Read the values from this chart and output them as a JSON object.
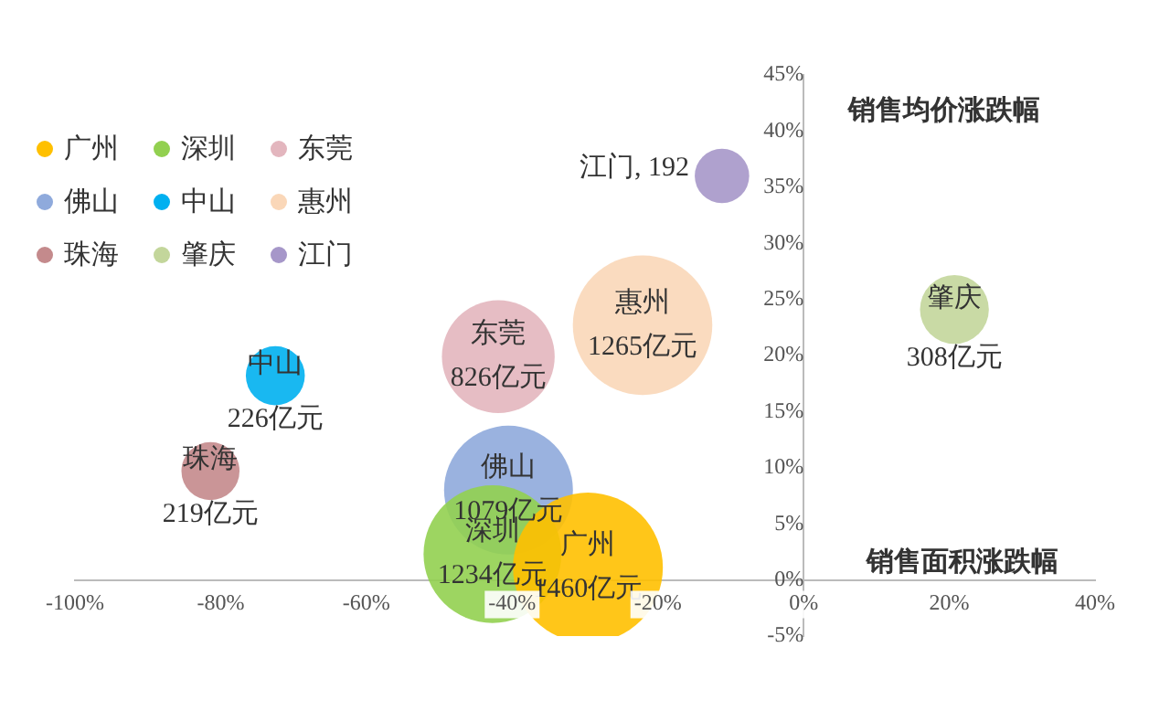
{
  "chart_data": {
    "type": "bubble",
    "xlabel": "销售面积涨跌幅",
    "ylabel": "销售均价涨跌幅",
    "xlim": [
      -100,
      40
    ],
    "xticks": [
      {
        "value": -100,
        "label": "-100%"
      },
      {
        "value": -80,
        "label": "-80%"
      },
      {
        "value": -60,
        "label": "-60%"
      },
      {
        "value": -40,
        "label": "-40%"
      },
      {
        "value": -20,
        "label": "-20%"
      },
      {
        "value": 0,
        "label": "0%"
      },
      {
        "value": 20,
        "label": "20%"
      },
      {
        "value": 40,
        "label": "40%"
      }
    ],
    "ylim": [
      -5,
      45
    ],
    "yticks": [
      {
        "value": -5,
        "label": "-5%"
      },
      {
        "value": 0,
        "label": "0%"
      },
      {
        "value": 5,
        "label": "5%"
      },
      {
        "value": 10,
        "label": "10%"
      },
      {
        "value": 15,
        "label": "15%"
      },
      {
        "value": 20,
        "label": "20%"
      },
      {
        "value": 25,
        "label": "25%"
      },
      {
        "value": 30,
        "label": "30%"
      },
      {
        "value": 35,
        "label": "35%"
      },
      {
        "value": 40,
        "label": "40%"
      },
      {
        "value": 45,
        "label": "45%"
      }
    ],
    "grid": false,
    "legend": "top left",
    "series": [
      {
        "name": "广州",
        "color": "#ffc000",
        "x": [
          -29.6
        ],
        "values": [
          1.1
        ],
        "sizes": [
          1
        ]
      },
      {
        "name": "深圳",
        "color": "#92d050",
        "x": [
          -42.7
        ],
        "values": [
          2.3
        ],
        "sizes": [
          0.845
        ]
      },
      {
        "name": "东莞",
        "color": "#e3b6be",
        "x": [
          -41.9
        ],
        "values": [
          19.9
        ],
        "sizes": [
          0.566
        ]
      },
      {
        "name": "佛山",
        "color": "#8faadc",
        "x": [
          -40.5
        ],
        "values": [
          8.0
        ],
        "sizes": [
          0.739
        ]
      },
      {
        "name": "中山",
        "color": "#00b0f0",
        "x": [
          -72.5
        ],
        "values": [
          18.2
        ],
        "sizes": [
          0.155
        ]
      },
      {
        "name": "惠州",
        "color": "#fad7b8",
        "x": [
          -22.1
        ],
        "values": [
          22.7
        ],
        "sizes": [
          0.866
        ]
      },
      {
        "name": "珠海",
        "color": "#c48a8c",
        "x": [
          -81.4
        ],
        "values": [
          9.7
        ],
        "sizes": [
          0.15
        ]
      },
      {
        "name": "肇庆",
        "color": "#c3d69b",
        "x": [
          20.7
        ],
        "values": [
          24.1
        ],
        "sizes": [
          0.211
        ]
      },
      {
        "name": "江门",
        "color": "#a697c9",
        "x": [
          -11.2
        ],
        "values": [
          36.0
        ],
        "sizes": [
          0.132
        ]
      }
    ],
    "annotations": [
      {
        "text": "广州\n1460亿元",
        "x": -29.6,
        "y": 1.1
      },
      {
        "text": "深圳\n1234亿元",
        "x": -42.7,
        "y": 2.3
      },
      {
        "text": "东莞\n826亿元",
        "x": -41.9,
        "y": 19.9
      },
      {
        "text": "佛山\n1079亿元",
        "x": -40.5,
        "y": 8.0
      },
      {
        "text": "中山\n226亿元",
        "x": -72.5,
        "y": 18.2
      },
      {
        "text": "惠州\n1265亿元",
        "x": -22.1,
        "y": 22.7
      },
      {
        "text": "珠海\n219亿元",
        "x": -81.4,
        "y": 9.7
      },
      {
        "text": "肇庆\n308亿元",
        "x": 20.7,
        "y": 24.1
      },
      {
        "text": "江门, 192",
        "x": -11.2,
        "y": 36.0
      }
    ]
  }
}
